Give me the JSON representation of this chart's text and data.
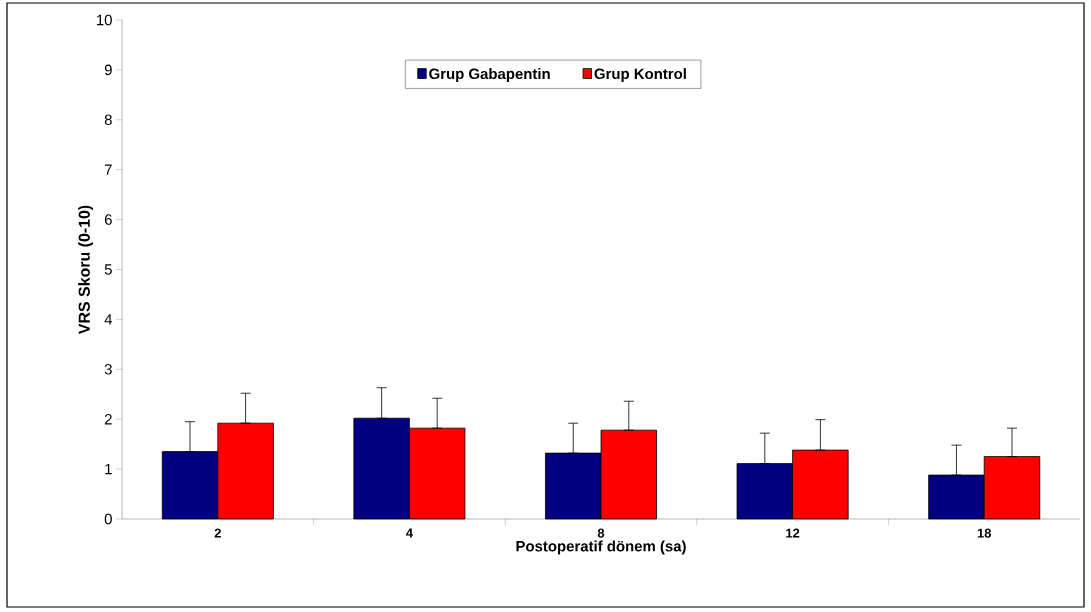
{
  "chart_data": {
    "type": "bar",
    "xlabel": "Postoperatif dönem (sa)",
    "ylabel": "VRS  Skoru (0-10)",
    "categories": [
      "2",
      "4",
      "8",
      "12",
      "18"
    ],
    "series": [
      {
        "name": "Grup Gabapentin",
        "color": "#000080",
        "values": [
          1.35,
          2.02,
          1.32,
          1.11,
          0.88
        ],
        "errors": [
          [
            1.35,
            1.95
          ],
          [
            2.02,
            2.63
          ],
          [
            1.32,
            1.92
          ],
          [
            1.11,
            1.72
          ],
          [
            0.88,
            1.48
          ]
        ]
      },
      {
        "name": "Grup Kontrol",
        "color": "#ff0000",
        "values": [
          1.92,
          1.82,
          1.78,
          1.38,
          1.25
        ],
        "errors": [
          [
            1.92,
            2.52
          ],
          [
            1.82,
            2.42
          ],
          [
            1.78,
            2.36
          ],
          [
            1.38,
            1.99
          ],
          [
            1.25,
            1.82
          ]
        ]
      }
    ],
    "ylim": [
      0,
      10
    ],
    "yticks": [
      0,
      1,
      2,
      3,
      4,
      5,
      6,
      7,
      8,
      9,
      10
    ],
    "legend": "top",
    "grid": false
  }
}
